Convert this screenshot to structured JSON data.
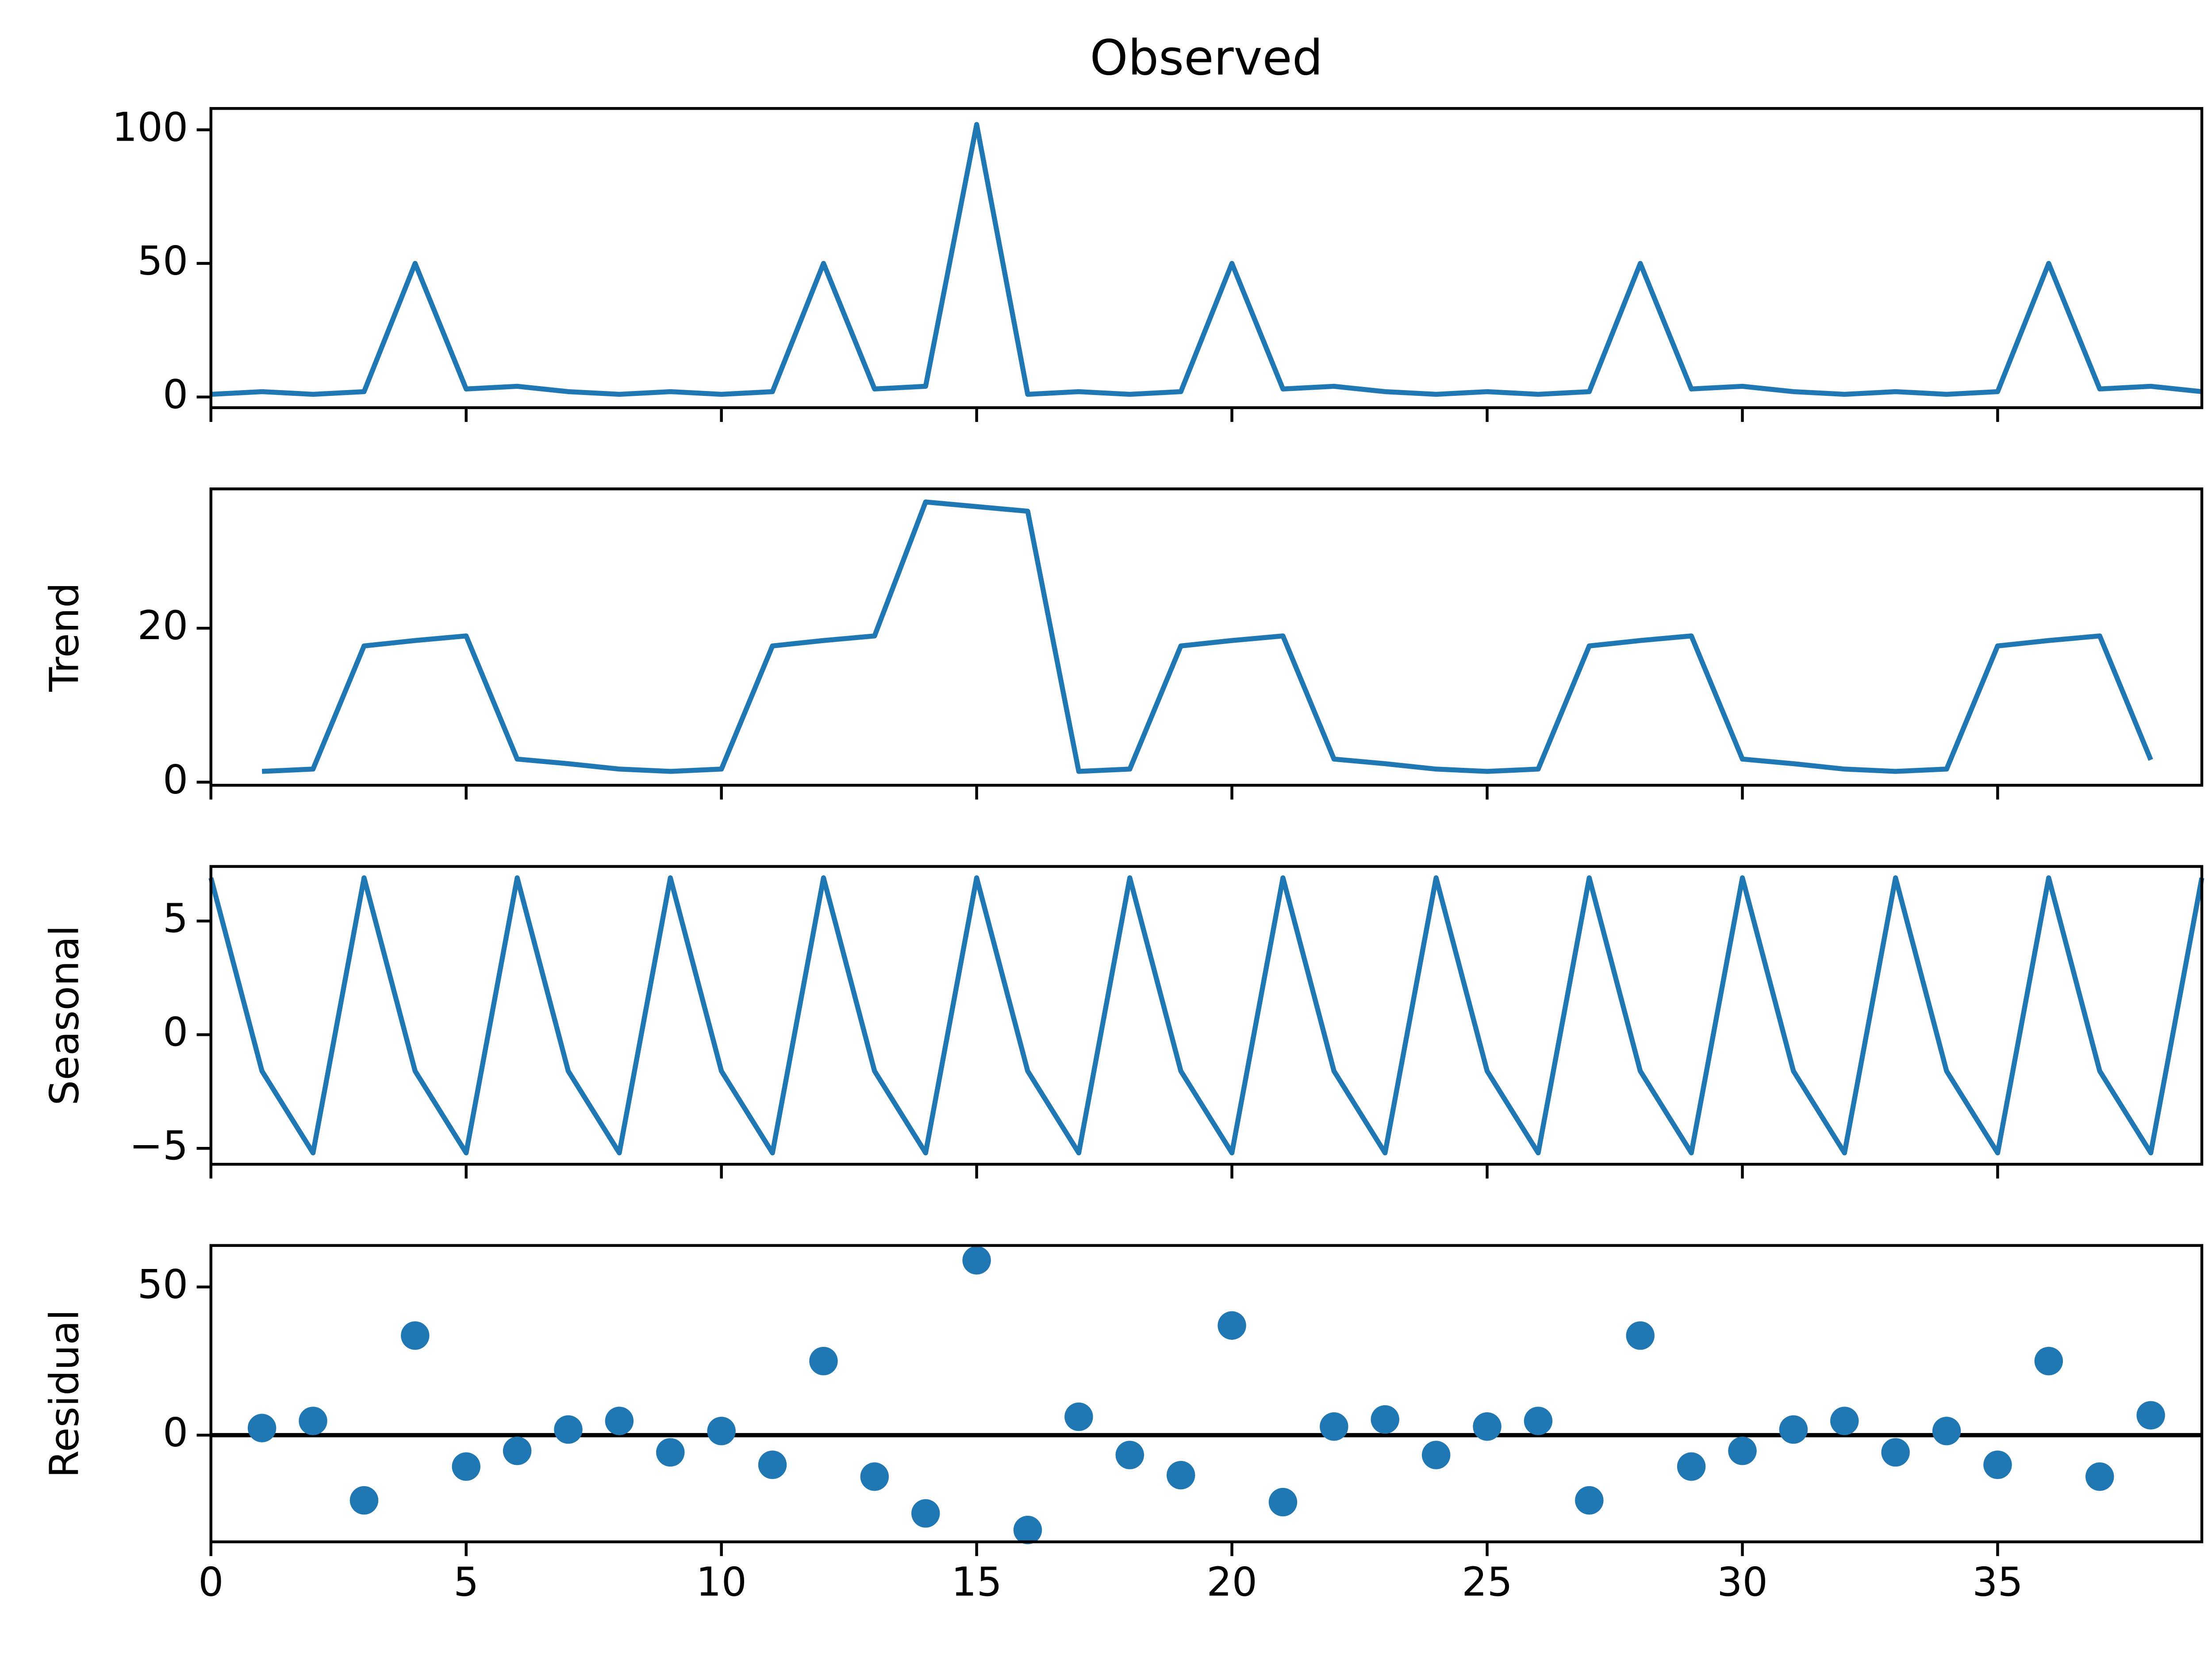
{
  "chart_data": [
    {
      "type": "line",
      "title": "Observed",
      "color": "#1f77b4",
      "x": [
        0,
        1,
        2,
        3,
        4,
        5,
        6,
        7,
        8,
        9,
        10,
        11,
        12,
        13,
        14,
        15,
        16,
        17,
        18,
        19,
        20,
        21,
        22,
        23,
        24,
        25,
        26,
        27,
        28,
        29,
        30,
        31,
        32,
        33,
        34,
        35,
        36,
        37,
        38,
        39
      ],
      "values": [
        1,
        2,
        1,
        2,
        50,
        3,
        4,
        2,
        1,
        2,
        1,
        2,
        50,
        3,
        4,
        102,
        1,
        2,
        1,
        2,
        50,
        3,
        4,
        2,
        1,
        2,
        1,
        2,
        50,
        3,
        4,
        2,
        1,
        2,
        1,
        2,
        50,
        3,
        4,
        2
      ],
      "xlim": [
        0,
        39
      ],
      "xticks": [
        0,
        5,
        10,
        15,
        20,
        25,
        30,
        35
      ],
      "ylim": [
        -4,
        108
      ],
      "yticks": [
        0,
        50,
        100
      ]
    },
    {
      "type": "line",
      "ylabel": "Trend",
      "color": "#1f77b4",
      "x": [
        0,
        1,
        2,
        3,
        4,
        5,
        6,
        7,
        8,
        9,
        10,
        11,
        12,
        13,
        14,
        15,
        16,
        17,
        18,
        19,
        20,
        21,
        22,
        23,
        24,
        25,
        26,
        27,
        28,
        29,
        30,
        31,
        32,
        33,
        34,
        35,
        36,
        37,
        38,
        39
      ],
      "values": [
        null,
        1.4,
        1.7,
        17.7,
        18.4,
        19,
        3,
        2.4,
        1.7,
        1.4,
        1.7,
        17.7,
        18.4,
        19,
        36.4,
        35.8,
        35.2,
        1.4,
        1.7,
        17.7,
        18.4,
        19,
        3,
        2.4,
        1.7,
        1.4,
        1.7,
        17.7,
        18.4,
        19,
        3,
        2.4,
        1.7,
        1.4,
        1.7,
        17.7,
        18.4,
        19,
        2.9,
        null
      ],
      "xlim": [
        0,
        39
      ],
      "xticks": [
        0,
        5,
        10,
        15,
        20,
        25,
        30,
        35
      ],
      "ylim": [
        -0.4,
        38.1
      ],
      "yticks": [
        0,
        20
      ]
    },
    {
      "type": "line",
      "ylabel": "Seasonal",
      "color": "#1f77b4",
      "x": [
        0,
        1,
        2,
        3,
        4,
        5,
        6,
        7,
        8,
        9,
        10,
        11,
        12,
        13,
        14,
        15,
        16,
        17,
        18,
        19,
        20,
        21,
        22,
        23,
        24,
        25,
        26,
        27,
        28,
        29,
        30,
        31,
        32,
        33,
        34,
        35,
        36,
        37,
        38,
        39
      ],
      "values": [
        6.9,
        -1.6,
        -5.2,
        6.9,
        -1.6,
        -5.2,
        6.9,
        -1.6,
        -5.2,
        6.9,
        -1.6,
        -5.2,
        6.9,
        -1.6,
        -5.2,
        6.9,
        -1.6,
        -5.2,
        6.9,
        -1.6,
        -5.2,
        6.9,
        -1.6,
        -5.2,
        6.9,
        -1.6,
        -5.2,
        6.9,
        -1.6,
        -5.2,
        6.9,
        -1.6,
        -5.2,
        6.9,
        -1.6,
        -5.2,
        6.9,
        -1.6,
        -5.2,
        6.9
      ],
      "xlim": [
        0,
        39
      ],
      "xticks": [
        0,
        5,
        10,
        15,
        20,
        25,
        30,
        35
      ],
      "ylim": [
        -5.7,
        7.4
      ],
      "yticks": [
        {
          "value": -5,
          "label": "−5"
        },
        0,
        5
      ]
    },
    {
      "type": "scatter",
      "ylabel": "Residual",
      "color": "#1f77b4",
      "baseline": 0,
      "x": [
        1,
        2,
        3,
        4,
        5,
        6,
        7,
        8,
        9,
        10,
        11,
        12,
        13,
        14,
        15,
        16,
        17,
        18,
        19,
        20,
        21,
        22,
        23,
        24,
        25,
        26,
        27,
        28,
        29,
        30,
        31,
        32,
        33,
        34,
        35,
        36,
        37,
        38
      ],
      "values": [
        2.4,
        4.8,
        -22,
        33.6,
        -10.6,
        -5.3,
        1.9,
        4.8,
        -5.8,
        1.4,
        -10,
        25,
        -14,
        -26.4,
        59,
        -32,
        6.2,
        -6.7,
        -13.5,
        37,
        -22.6,
        2.9,
        5.3,
        -6.7,
        2.9,
        4.8,
        -22,
        33.6,
        -10.6,
        -5.3,
        1.9,
        4.8,
        -5.8,
        1.4,
        -10,
        25,
        -14,
        6.7
      ],
      "xlim": [
        0,
        39
      ],
      "xticks": [
        0,
        5,
        10,
        15,
        20,
        25,
        30,
        35
      ],
      "ylim": [
        -36,
        64
      ],
      "yticks": [
        0,
        50
      ]
    }
  ]
}
